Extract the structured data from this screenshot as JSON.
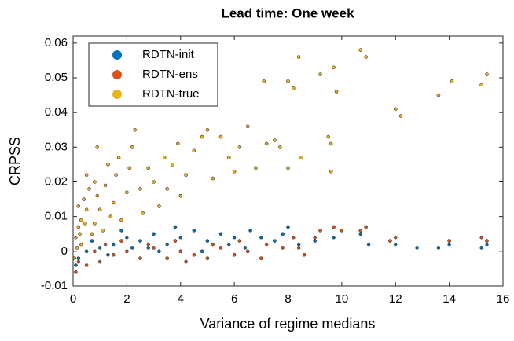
{
  "chart_data": {
    "type": "scatter",
    "title": "Lead time: One week",
    "x_label": "Variance of regime medians",
    "y_label": "CRPSS",
    "xlim": [
      0,
      16
    ],
    "ylim": [
      -0.01,
      0.062
    ],
    "xticks": [
      0,
      2,
      4,
      6,
      8,
      10,
      12,
      14,
      16
    ],
    "yticks": [
      -0.01,
      0,
      0.01,
      0.02,
      0.03,
      0.04,
      0.05,
      0.06
    ],
    "legend": "upper left",
    "series": [
      {
        "name": "RDTN-init",
        "color": "#0072BD",
        "x": [
          15.2,
          15.4,
          14.0,
          13.6,
          12.8,
          12.0,
          11.0,
          10.7,
          9.7,
          9.0,
          8.4,
          8.0,
          7.8,
          7.5,
          7.0,
          6.6,
          6.0,
          5.5,
          5.0,
          4.5,
          4.0,
          3.5,
          3.0,
          2.5,
          2.0,
          1.5,
          1.0,
          0.5,
          0.2,
          0.1,
          1.8,
          2.8,
          3.8,
          4.8,
          5.8,
          6.4,
          0.7,
          1.3,
          2.2,
          3.2
        ],
        "y": [
          0.001,
          0.002,
          0.002,
          0.001,
          0.001,
          0.002,
          0.002,
          0.005,
          0.004,
          0.003,
          0.002,
          0.007,
          0.005,
          0.003,
          0.004,
          0.006,
          0.004,
          0.005,
          0.003,
          0.006,
          0.004,
          0.002,
          0.005,
          0.003,
          0.004,
          0.002,
          0.001,
          0.0,
          -0.002,
          -0.004,
          0.006,
          0.001,
          0.007,
          0.0,
          0.002,
          0.001,
          0.003,
          -0.001,
          0.001,
          0.0
        ]
      },
      {
        "name": "RDTN-ens",
        "color": "#D95319",
        "x": [
          15.4,
          15.2,
          14.0,
          12.0,
          11.8,
          10.9,
          10.7,
          10.0,
          9.7,
          9.2,
          9.0,
          8.4,
          8.2,
          7.8,
          7.2,
          7.0,
          6.5,
          6.0,
          5.5,
          5.0,
          4.5,
          4.0,
          3.5,
          3.0,
          2.5,
          2.0,
          1.5,
          1.0,
          0.5,
          0.1,
          0.2,
          0.8,
          1.2,
          1.8,
          2.8,
          3.8,
          4.2,
          5.2,
          6.2,
          8.6
        ],
        "y": [
          0.003,
          0.004,
          0.003,
          0.004,
          0.003,
          0.007,
          0.006,
          0.006,
          0.007,
          0.006,
          0.004,
          0.001,
          0.004,
          0.001,
          0.002,
          -0.002,
          0.0,
          -0.001,
          0.001,
          -0.002,
          -0.001,
          0.0,
          -0.002,
          0.001,
          -0.002,
          0.0,
          -0.001,
          -0.003,
          -0.004,
          -0.006,
          -0.003,
          0.0,
          0.002,
          0.003,
          0.002,
          0.003,
          -0.003,
          0.002,
          0.003,
          -0.001
        ]
      },
      {
        "name": "RDTN-true",
        "color": "#EDB120",
        "x": [
          8.4,
          10.7,
          10.9,
          14.1,
          15.4,
          15.2,
          13.6,
          12.0,
          12.2,
          9.7,
          9.2,
          9.8,
          8.0,
          7.1,
          8.2,
          9.6,
          8.0,
          7.7,
          8.5,
          9.5,
          9.6,
          6.5,
          5.5,
          4.8,
          5.0,
          6.2,
          7.2,
          7.5,
          5.8,
          4.5,
          3.9,
          3.4,
          2.8,
          2.3,
          2.2,
          1.7,
          1.6,
          1.3,
          1.2,
          0.9,
          0.8,
          0.6,
          0.5,
          0.3,
          0.2,
          0.1,
          0.4,
          1.0,
          1.5,
          2.0,
          2.5,
          3.0,
          3.5,
          4.2,
          5.2,
          6.0,
          6.8,
          1.8,
          2.6,
          0.7,
          0.15,
          0.05,
          1.1,
          3.2,
          4.0,
          0.3,
          0.45,
          0.2,
          0.8,
          1.4,
          2.1,
          3.7,
          0.25,
          0.5,
          0.9
        ],
        "y": [
          0.056,
          0.058,
          0.056,
          0.049,
          0.051,
          0.048,
          0.045,
          0.041,
          0.039,
          0.053,
          0.051,
          0.046,
          0.049,
          0.049,
          0.047,
          0.023,
          0.024,
          0.03,
          0.027,
          0.033,
          0.031,
          0.036,
          0.033,
          0.033,
          0.035,
          0.03,
          0.031,
          0.032,
          0.027,
          0.029,
          0.031,
          0.027,
          0.024,
          0.035,
          0.03,
          0.027,
          0.022,
          0.025,
          0.019,
          0.03,
          0.02,
          0.018,
          0.012,
          0.009,
          0.007,
          0.004,
          0.015,
          0.012,
          0.014,
          0.017,
          0.018,
          0.02,
          0.018,
          0.022,
          0.021,
          0.023,
          0.024,
          0.009,
          0.011,
          0.005,
          0.001,
          -0.002,
          0.006,
          0.013,
          0.016,
          0.002,
          0.008,
          0.013,
          0.008,
          0.01,
          0.024,
          0.025,
          0.005,
          0.022,
          0.016
        ]
      }
    ]
  }
}
